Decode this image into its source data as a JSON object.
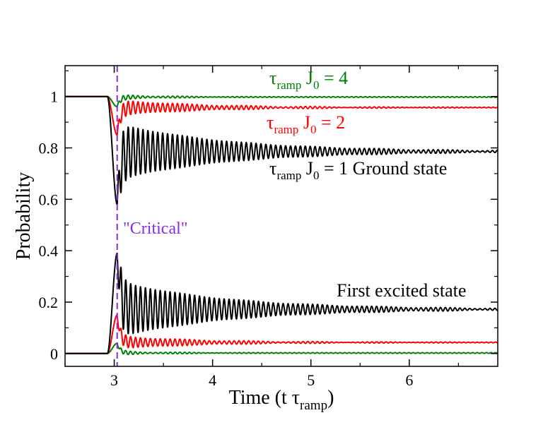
{
  "chart_data": {
    "type": "line",
    "xlabel_main": "Time (t τ",
    "xlabel_sub": "ramp",
    "xlabel_close": ")",
    "ylabel": "Probability",
    "xlim": [
      2.5,
      6.9
    ],
    "ylim": [
      -0.05,
      1.12
    ],
    "x_ticks": [
      3,
      4,
      5,
      6
    ],
    "x_tick_labels": [
      "3",
      "4",
      "5",
      "6"
    ],
    "y_ticks": [
      0,
      0.2,
      0.4,
      0.6,
      0.8,
      1.0
    ],
    "y_tick_labels": [
      "0",
      "0.2",
      "0.4",
      "0.6",
      "0.8",
      "1"
    ],
    "x_minor_step": 0.5,
    "y_minor_step": 0.1,
    "critical_x": 3.03,
    "critical_label": "\"Critical\"",
    "critical_color": "#8a2be2",
    "series": [
      {
        "name": "τramp J0 = 4 ground",
        "state": "ground",
        "color": "#008000",
        "start": 1.0,
        "final": 0.998,
        "drop_min": 0.96,
        "osc_amp": 0.01,
        "osc_decay": 2.5,
        "osc_period": 0.05
      },
      {
        "name": "τramp J0 = 2 ground",
        "state": "ground",
        "color": "#ff0000",
        "start": 1.0,
        "final": 0.957,
        "drop_min": 0.85,
        "osc_amp": 0.03,
        "osc_decay": 1.2,
        "osc_period": 0.05
      },
      {
        "name": "τramp J0 = 1 ground",
        "state": "ground",
        "color": "#000000",
        "start": 1.0,
        "final": 0.786,
        "drop_min": 0.58,
        "osc_amp": 0.11,
        "osc_decay": 0.9,
        "osc_period": 0.05
      },
      {
        "name": "τramp J0 = 4 excited",
        "state": "excited",
        "color": "#008000",
        "start": 0.0,
        "final": 0.002,
        "drop_min": 0.04,
        "osc_amp": 0.008,
        "osc_decay": 2.5,
        "osc_period": 0.05
      },
      {
        "name": "τramp J0 = 2 excited",
        "state": "excited",
        "color": "#ff0000",
        "start": 0.0,
        "final": 0.043,
        "drop_min": 0.15,
        "osc_amp": 0.025,
        "osc_decay": 1.2,
        "osc_period": 0.05
      },
      {
        "name": "τramp J0 = 1 excited",
        "state": "excited",
        "color": "#000000",
        "start": 0.0,
        "final": 0.172,
        "drop_min": 0.39,
        "osc_amp": 0.11,
        "osc_decay": 0.9,
        "osc_period": 0.05
      }
    ],
    "annotations": [
      {
        "id": "j4",
        "color": "#008000",
        "tau": "τ",
        "sub": "ramp",
        "mid": " J",
        "sub2": "0",
        "tail": " = 4"
      },
      {
        "id": "j2",
        "color": "#ff0000",
        "tau": "τ",
        "sub": "ramp",
        "mid": " J",
        "sub2": "0",
        "tail": " = 2"
      },
      {
        "id": "j1",
        "color": "#000000",
        "tau": "τ",
        "sub": "ramp",
        "mid": " J",
        "sub2": "0",
        "tail": " = 1 Ground state"
      },
      {
        "id": "excited",
        "color": "#000000",
        "text": "First excited state"
      }
    ]
  }
}
